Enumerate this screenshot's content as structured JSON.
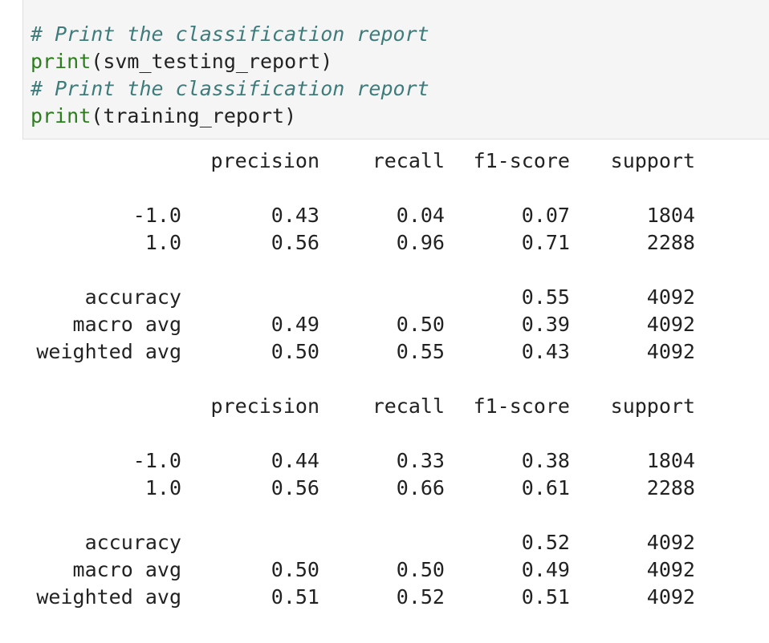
{
  "code": {
    "line1_comment": "# Print the classification report",
    "line2_func": "print",
    "line2_args": "(svm_testing_report)",
    "line3_comment": "# Print the classification report",
    "line4_func": "print",
    "line4_args": "(training_report)"
  },
  "reports": [
    {
      "header": [
        "",
        "precision",
        "recall",
        "f1-score",
        "support"
      ],
      "rows": [
        [
          "-1.0",
          "0.43",
          "0.04",
          "0.07",
          "1804"
        ],
        [
          "1.0",
          "0.56",
          "0.96",
          "0.71",
          "2288"
        ],
        [
          "",
          "",
          "",
          "",
          ""
        ],
        [
          "accuracy",
          "",
          "",
          "0.55",
          "4092"
        ],
        [
          "macro avg",
          "0.49",
          "0.50",
          "0.39",
          "4092"
        ],
        [
          "weighted avg",
          "0.50",
          "0.55",
          "0.43",
          "4092"
        ]
      ]
    },
    {
      "header": [
        "",
        "precision",
        "recall",
        "f1-score",
        "support"
      ],
      "rows": [
        [
          "-1.0",
          "0.44",
          "0.33",
          "0.38",
          "1804"
        ],
        [
          "1.0",
          "0.56",
          "0.66",
          "0.61",
          "2288"
        ],
        [
          "",
          "",
          "",
          "",
          ""
        ],
        [
          "accuracy",
          "",
          "",
          "0.52",
          "4092"
        ],
        [
          "macro avg",
          "0.50",
          "0.50",
          "0.49",
          "4092"
        ],
        [
          "weighted avg",
          "0.51",
          "0.52",
          "0.51",
          "4092"
        ]
      ]
    }
  ]
}
